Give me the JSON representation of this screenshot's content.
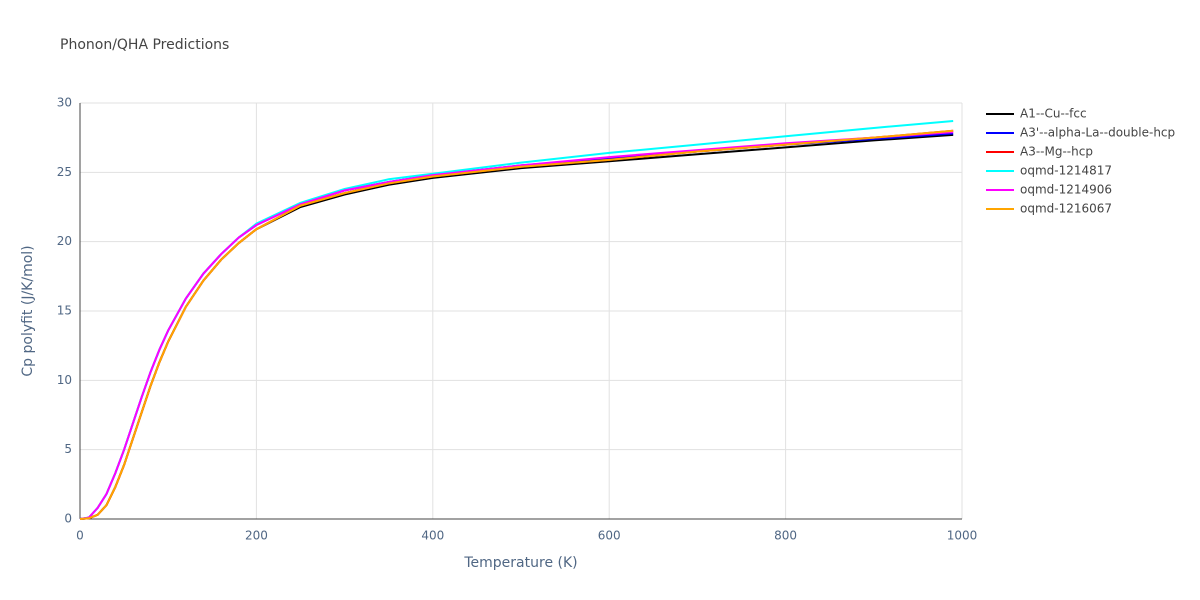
{
  "chart_data": {
    "type": "line",
    "title": "Phonon/QHA Predictions",
    "x_label": "Temperature (K)",
    "y_label": "Cp polyfit (J/K/mol)",
    "x": [
      0,
      10,
      20,
      30,
      40,
      50,
      60,
      70,
      80,
      90,
      100,
      120,
      140,
      160,
      180,
      200,
      250,
      300,
      350,
      400,
      500,
      600,
      700,
      800,
      900,
      990
    ],
    "series": [
      {
        "name": "A1--Cu--fcc",
        "color": "#000000",
        "values": [
          0,
          0.05,
          0.3,
          1.0,
          2.3,
          3.9,
          5.8,
          7.7,
          9.6,
          11.3,
          12.8,
          15.3,
          17.2,
          18.7,
          19.9,
          20.9,
          22.5,
          23.4,
          24.1,
          24.6,
          25.3,
          25.8,
          26.3,
          26.8,
          27.3,
          27.7
        ]
      },
      {
        "name": "A3'--alpha-La--double-hcp",
        "color": "#0000ff",
        "values": [
          0,
          0.1,
          0.8,
          1.8,
          3.3,
          5.0,
          6.9,
          8.8,
          10.6,
          12.2,
          13.6,
          15.9,
          17.7,
          19.1,
          20.3,
          21.2,
          22.7,
          23.7,
          24.3,
          24.8,
          25.5,
          26.0,
          26.5,
          27.0,
          27.4,
          27.8
        ]
      },
      {
        "name": "A3--Mg--hcp",
        "color": "#ff0000",
        "values": [
          0,
          0.05,
          0.3,
          1.0,
          2.3,
          3.9,
          5.8,
          7.7,
          9.6,
          11.3,
          12.8,
          15.3,
          17.2,
          18.7,
          19.9,
          20.9,
          22.6,
          23.5,
          24.2,
          24.7,
          25.4,
          25.9,
          26.5,
          27.0,
          27.5,
          28.0
        ]
      },
      {
        "name": "oqmd-1214817",
        "color": "#00ffff",
        "values": [
          0,
          0.1,
          0.8,
          1.8,
          3.3,
          5.0,
          6.9,
          8.8,
          10.6,
          12.2,
          13.6,
          15.9,
          17.7,
          19.1,
          20.3,
          21.3,
          22.8,
          23.8,
          24.5,
          24.9,
          25.7,
          26.4,
          27.0,
          27.6,
          28.2,
          28.7
        ]
      },
      {
        "name": "oqmd-1214906",
        "color": "#ff00ff",
        "values": [
          0,
          0.1,
          0.8,
          1.8,
          3.3,
          5.0,
          6.9,
          8.8,
          10.6,
          12.2,
          13.6,
          15.9,
          17.7,
          19.1,
          20.3,
          21.2,
          22.7,
          23.7,
          24.3,
          24.8,
          25.5,
          26.1,
          26.6,
          27.1,
          27.5,
          27.9
        ]
      },
      {
        "name": "oqmd-1216067",
        "color": "#ffa500",
        "values": [
          0,
          0.05,
          0.3,
          1.0,
          2.3,
          3.9,
          5.8,
          7.7,
          9.6,
          11.3,
          12.8,
          15.3,
          17.2,
          18.7,
          19.9,
          20.9,
          22.6,
          23.5,
          24.2,
          24.7,
          25.4,
          25.9,
          26.5,
          27.0,
          27.5,
          28.0
        ]
      }
    ],
    "xlim": [
      0,
      1000
    ],
    "xticks": [
      0,
      200,
      400,
      600,
      800,
      1000
    ],
    "ylim": [
      0,
      30
    ],
    "yticks": [
      0,
      5,
      10,
      15,
      20,
      25,
      30
    ],
    "grid": true
  }
}
